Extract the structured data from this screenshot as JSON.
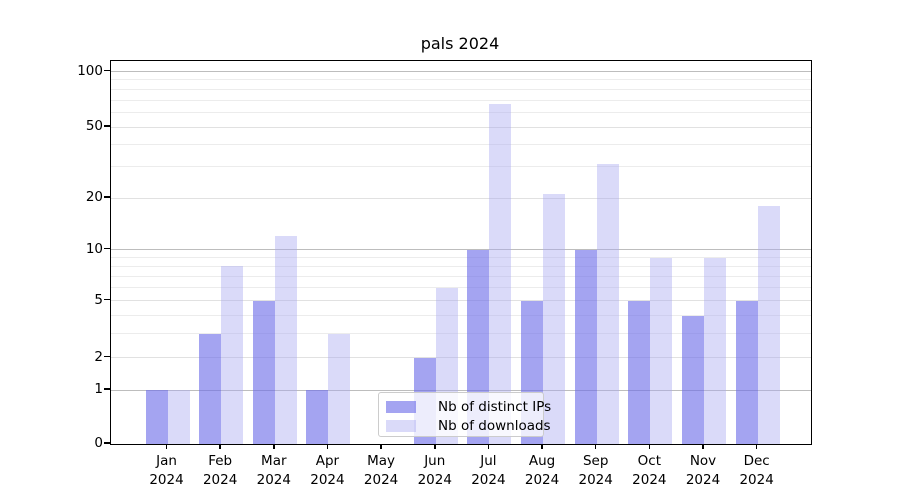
{
  "title": "pals 2024",
  "chart_data": {
    "type": "bar",
    "title": "pals 2024",
    "categories": [
      "Jan 2024",
      "Feb 2024",
      "Mar 2024",
      "Apr 2024",
      "May 2024",
      "Jun 2024",
      "Jul 2024",
      "Aug 2024",
      "Sep 2024",
      "Oct 2024",
      "Nov 2024",
      "Dec 2024"
    ],
    "months": [
      "Jan",
      "Feb",
      "Mar",
      "Apr",
      "May",
      "Jun",
      "Jul",
      "Aug",
      "Sep",
      "Oct",
      "Nov",
      "Dec"
    ],
    "year": "2024",
    "series": [
      {
        "name": "Nb of distinct IPs",
        "key": "distinct-ips",
        "color": "rgba(108,108,232,0.62)",
        "values": [
          1,
          3,
          5,
          1,
          0,
          2,
          10,
          5,
          10,
          5,
          4,
          5
        ]
      },
      {
        "name": "Nb of downloads",
        "key": "downloads",
        "color": "rgba(168,168,240,0.42)",
        "values": [
          1,
          8,
          12,
          3,
          0,
          6,
          67,
          21,
          31,
          9,
          9,
          18
        ]
      }
    ],
    "xlabel": "",
    "ylabel": "",
    "y_axis": {
      "scale": "symlog",
      "ticks": [
        0,
        1,
        2,
        5,
        10,
        20,
        50,
        100
      ],
      "minor_ticks": [
        3,
        4,
        6,
        7,
        8,
        9,
        30,
        40,
        60,
        70,
        80,
        90
      ],
      "range": [
        0,
        100
      ]
    },
    "grid": "on",
    "legend_position": "lower-center-inside"
  },
  "legend": {
    "items": [
      {
        "label": "Nb of distinct IPs"
      },
      {
        "label": "Nb of downloads"
      }
    ]
  }
}
